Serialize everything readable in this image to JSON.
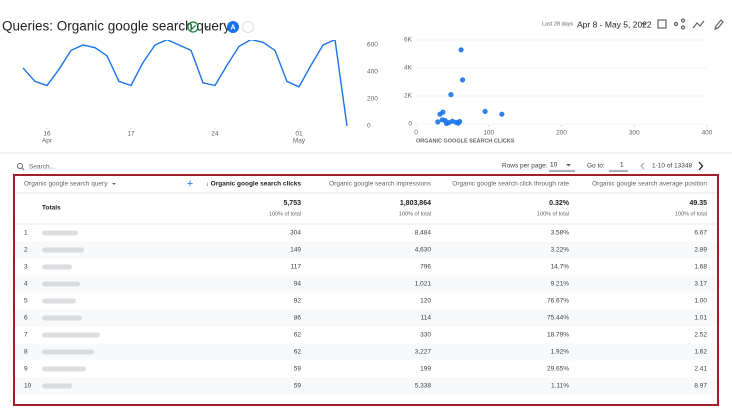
{
  "header": {
    "title": "Queries: Organic google search query",
    "comparison_badge": "A",
    "date_range_label": "Last 28 days",
    "date_range": "Apr 8 - May 5, 2022"
  },
  "line_chart": {
    "type": "line",
    "color": "#1a73e8",
    "values": [
      430,
      330,
      300,
      420,
      560,
      600,
      580,
      520,
      330,
      300,
      470,
      600,
      640,
      600,
      560,
      320,
      300,
      450,
      590,
      640,
      620,
      560,
      330,
      290,
      450,
      600,
      640,
      0
    ],
    "ylim": [
      0,
      600
    ],
    "yticks": [
      0,
      200,
      400,
      600
    ],
    "xticks": [
      {
        "value": 2,
        "label": "16",
        "sublabel": "Apr"
      },
      {
        "value": 9,
        "label": "17"
      },
      {
        "value": 16,
        "label": "24"
      },
      {
        "value": 23,
        "label": "01",
        "sublabel": "May"
      }
    ]
  },
  "scatter_chart": {
    "type": "scatter",
    "color": "#1a73e8",
    "x_label": "ORGANIC GOOGLE SEARCH CLICKS",
    "x": [
      62,
      64,
      48,
      95,
      118,
      33,
      37,
      30,
      40,
      45,
      50,
      55,
      58,
      42,
      36,
      60
    ],
    "y": [
      5300,
      3150,
      2100,
      900,
      700,
      700,
      850,
      150,
      250,
      100,
      200,
      120,
      60,
      40,
      300,
      180
    ],
    "xlim": [
      0,
      400
    ],
    "xticks": [
      0,
      100,
      200,
      300,
      400
    ],
    "ylim": [
      0,
      6000
    ],
    "yticks": [
      {
        "value": 0,
        "label": "0"
      },
      {
        "value": 2000,
        "label": "2K"
      },
      {
        "value": 4000,
        "label": "4K"
      },
      {
        "value": 6000,
        "label": "6K"
      }
    ]
  },
  "table_controls": {
    "search_placeholder": "Search...",
    "rows_per_page_label": "Rows per page:",
    "rows_per_page": "10",
    "go_to_label": "Go to:",
    "go_to": "1",
    "range": "1-10 of 13348"
  },
  "table": {
    "headers": [
      "Organic google search query",
      "↓ Organic google search clicks",
      "Organic google search impressions",
      "Organic google search click through rate",
      "Organic google search average position"
    ],
    "totals": {
      "label": "Totals",
      "values": [
        "5,753",
        "1,803,864",
        "0.32%",
        "49.35"
      ],
      "notes": [
        "100% of total",
        "100% of total",
        "100% of total",
        "100% of total"
      ]
    },
    "rows": [
      [
        "1",
        "304",
        "8,484",
        "3.58%",
        "6.67"
      ],
      [
        "2",
        "149",
        "4,630",
        "3.22%",
        "2.89"
      ],
      [
        "3",
        "117",
        "796",
        "14.7%",
        "1.68"
      ],
      [
        "4",
        "94",
        "1,021",
        "9.21%",
        "3.17"
      ],
      [
        "5",
        "92",
        "120",
        "76.67%",
        "1.00"
      ],
      [
        "6",
        "86",
        "114",
        "75.44%",
        "1.01"
      ],
      [
        "7",
        "62",
        "330",
        "18.79%",
        "2.52"
      ],
      [
        "8",
        "62",
        "3,227",
        "1.92%",
        "1.62"
      ],
      [
        "9",
        "59",
        "199",
        "29.65%",
        "2.41"
      ],
      [
        "10",
        "59",
        "5,338",
        "1.11%",
        "8.97"
      ]
    ]
  }
}
